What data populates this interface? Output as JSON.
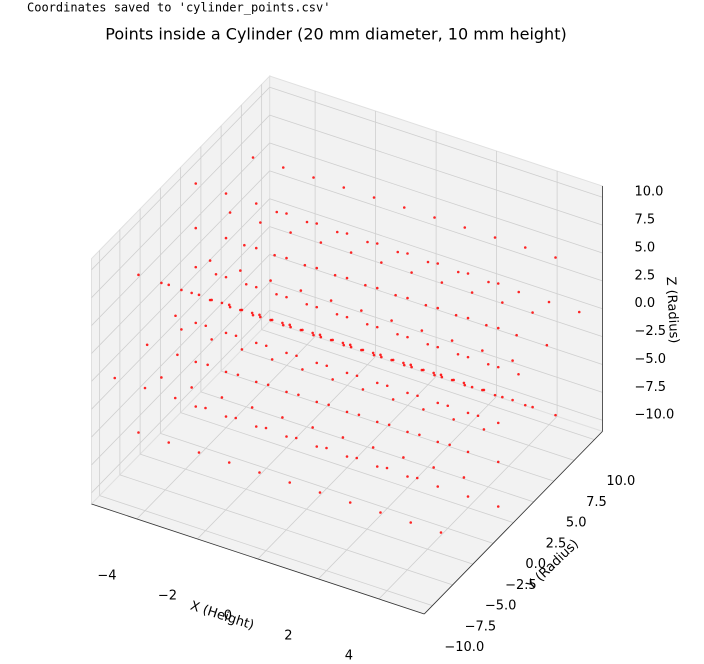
{
  "output_text": "Coordinates saved to 'cylinder_points.csv'",
  "chart_data": {
    "type": "scatter3d",
    "title": "Points inside a Cylinder (20 mm diameter, 10 mm height)",
    "xlabel": "X (Height)",
    "ylabel": "Y (Radius)",
    "zlabel": "Z (Radius)",
    "color": "#ff0000",
    "xlim": [
      -5.5,
      5.5
    ],
    "ylim": [
      -11,
      11
    ],
    "zlim": [
      -11,
      11
    ],
    "xticks": [
      {
        "value": -4,
        "label": "−4"
      },
      {
        "value": -2,
        "label": "−2"
      },
      0,
      2,
      4
    ],
    "yticks": [
      {
        "value": -10,
        "label": "−10.0"
      },
      {
        "value": -7.5,
        "label": "−7.5"
      },
      {
        "value": -5,
        "label": "−5.0"
      },
      {
        "value": -2.5,
        "label": "−2.5"
      },
      {
        "value": 0,
        "label": "0.0"
      },
      2.5,
      {
        "value": 5,
        "label": "5.0"
      },
      7.5,
      {
        "value": 10,
        "label": "10.0"
      }
    ],
    "zticks": [
      {
        "value": -10,
        "label": "−10.0"
      },
      {
        "value": -7.5,
        "label": "−7.5"
      },
      {
        "value": -5,
        "label": "−5.0"
      },
      {
        "value": -2.5,
        "label": "−2.5"
      },
      {
        "value": 0,
        "label": "0.0"
      },
      2.5,
      {
        "value": 5,
        "label": "5.0"
      },
      7.5,
      {
        "value": 10,
        "label": "10.0"
      }
    ],
    "grid": true,
    "x": [
      -5,
      -5,
      -5,
      -5,
      -5,
      -5,
      -5,
      -5,
      -5,
      -5,
      -5,
      -5,
      -5,
      -5,
      -5,
      -5,
      -5,
      -5,
      -5,
      -5,
      -5,
      -5,
      -5,
      -5,
      -4,
      -4,
      -4,
      -4,
      -4,
      -4,
      -4,
      -4,
      -4,
      -4,
      -4,
      -4,
      -4,
      -4,
      -4,
      -4,
      -4,
      -4,
      -4,
      -4,
      -4,
      -4,
      -4,
      -4,
      -3,
      -3,
      -3,
      -3,
      -3,
      -3,
      -3,
      -3,
      -3,
      -3,
      -3,
      -3,
      -3,
      -3,
      -3,
      -3,
      -3,
      -3,
      -3,
      -3,
      -3,
      -3,
      -3,
      -3,
      -2,
      -2,
      -2,
      -2,
      -2,
      -2,
      -2,
      -2,
      -2,
      -2,
      -2,
      -2,
      -2,
      -2,
      -2,
      -2,
      -2,
      -2,
      -2,
      -2,
      -2,
      -2,
      -2,
      -2,
      -1,
      -1,
      -1,
      -1,
      -1,
      -1,
      -1,
      -1,
      -1,
      -1,
      -1,
      -1,
      -1,
      -1,
      -1,
      -1,
      -1,
      -1,
      -1,
      -1,
      -1,
      -1,
      -1,
      -1,
      0,
      0,
      0,
      0,
      0,
      0,
      0,
      0,
      0,
      0,
      0,
      0,
      0,
      0,
      0,
      0,
      0,
      0,
      0,
      0,
      0,
      0,
      0,
      0,
      1,
      1,
      1,
      1,
      1,
      1,
      1,
      1,
      1,
      1,
      1,
      1,
      1,
      1,
      1,
      1,
      1,
      1,
      1,
      1,
      1,
      1,
      1,
      1,
      2,
      2,
      2,
      2,
      2,
      2,
      2,
      2,
      2,
      2,
      2,
      2,
      2,
      2,
      2,
      2,
      2,
      2,
      2,
      2,
      2,
      2,
      2,
      2,
      3,
      3,
      3,
      3,
      3,
      3,
      3,
      3,
      3,
      3,
      3,
      3,
      3,
      3,
      3,
      3,
      3,
      3,
      3,
      3,
      3,
      3,
      3,
      3,
      4,
      4,
      4,
      4,
      4,
      4,
      4,
      4,
      4,
      4,
      4,
      4,
      4,
      4,
      4,
      4,
      4,
      4,
      4,
      4,
      4,
      4,
      4,
      4,
      5,
      5,
      5,
      5,
      5,
      5,
      5,
      5,
      5,
      5,
      5,
      5,
      5,
      5,
      5,
      5,
      5,
      5,
      5,
      5,
      5,
      5,
      5,
      5
    ],
    "y": [
      2.5,
      1.77,
      0,
      -1.77,
      -2.5,
      -1.77,
      0,
      1.77,
      6,
      4.24,
      0,
      -4.24,
      -6,
      -4.24,
      0,
      4.24,
      10,
      7.07,
      0,
      -7.07,
      -10,
      -7.07,
      0,
      7.07,
      2.5,
      1.77,
      0,
      -1.77,
      -2.5,
      -1.77,
      0,
      1.77,
      6,
      4.24,
      0,
      -4.24,
      -6,
      -4.24,
      0,
      4.24,
      10,
      7.07,
      0,
      -7.07,
      -10,
      -7.07,
      0,
      7.07,
      2.5,
      1.77,
      0,
      -1.77,
      -2.5,
      -1.77,
      0,
      1.77,
      6,
      4.24,
      0,
      -4.24,
      -6,
      -4.24,
      0,
      4.24,
      10,
      7.07,
      0,
      -7.07,
      -10,
      -7.07,
      0,
      7.07,
      2.5,
      1.77,
      0,
      -1.77,
      -2.5,
      -1.77,
      0,
      1.77,
      6,
      4.24,
      0,
      -4.24,
      -6,
      -4.24,
      0,
      4.24,
      10,
      7.07,
      0,
      -7.07,
      -10,
      -7.07,
      0,
      7.07,
      2.5,
      1.77,
      0,
      -1.77,
      -2.5,
      -1.77,
      0,
      1.77,
      6,
      4.24,
      0,
      -4.24,
      -6,
      -4.24,
      0,
      4.24,
      10,
      7.07,
      0,
      -7.07,
      -10,
      -7.07,
      0,
      7.07,
      2.5,
      1.77,
      0,
      -1.77,
      -2.5,
      -1.77,
      0,
      1.77,
      6,
      4.24,
      0,
      -4.24,
      -6,
      -4.24,
      0,
      4.24,
      10,
      7.07,
      0,
      -7.07,
      -10,
      -7.07,
      0,
      7.07,
      2.5,
      1.77,
      0,
      -1.77,
      -2.5,
      -1.77,
      0,
      1.77,
      6,
      4.24,
      0,
      -4.24,
      -6,
      -4.24,
      0,
      4.24,
      10,
      7.07,
      0,
      -7.07,
      -10,
      -7.07,
      0,
      7.07,
      2.5,
      1.77,
      0,
      -1.77,
      -2.5,
      -1.77,
      0,
      1.77,
      6,
      4.24,
      0,
      -4.24,
      -6,
      -4.24,
      0,
      4.24,
      10,
      7.07,
      0,
      -7.07,
      -10,
      -7.07,
      0,
      7.07,
      2.5,
      1.77,
      0,
      -1.77,
      -2.5,
      -1.77,
      0,
      1.77,
      6,
      4.24,
      0,
      -4.24,
      -6,
      -4.24,
      0,
      4.24,
      10,
      7.07,
      0,
      -7.07,
      -10,
      -7.07,
      0,
      7.07,
      2.5,
      1.77,
      0,
      -1.77,
      -2.5,
      -1.77,
      0,
      1.77,
      6,
      4.24,
      0,
      -4.24,
      -6,
      -4.24,
      0,
      4.24,
      10,
      7.07,
      0,
      -7.07,
      -10,
      -7.07,
      0,
      7.07,
      2.5,
      1.77,
      0,
      -1.77,
      -2.5,
      -1.77,
      0,
      1.77,
      6,
      4.24,
      0,
      -4.24,
      -6,
      -4.24,
      0,
      4.24,
      10,
      7.07,
      0,
      -7.07,
      -10,
      -7.07,
      0,
      7.07
    ],
    "z": [
      0,
      1.77,
      2.5,
      1.77,
      0,
      -1.77,
      -2.5,
      -1.77,
      0,
      4.24,
      6,
      4.24,
      0,
      -4.24,
      -6,
      -4.24,
      0,
      7.07,
      10,
      7.07,
      0,
      -7.07,
      -10,
      -7.07,
      0,
      1.77,
      2.5,
      1.77,
      0,
      -1.77,
      -2.5,
      -1.77,
      0,
      4.24,
      6,
      4.24,
      0,
      -4.24,
      -6,
      -4.24,
      0,
      7.07,
      10,
      7.07,
      0,
      -7.07,
      -10,
      -7.07,
      0,
      1.77,
      2.5,
      1.77,
      0,
      -1.77,
      -2.5,
      -1.77,
      0,
      4.24,
      6,
      4.24,
      0,
      -4.24,
      -6,
      -4.24,
      0,
      7.07,
      10,
      7.07,
      0,
      -7.07,
      -10,
      -7.07,
      0,
      1.77,
      2.5,
      1.77,
      0,
      -1.77,
      -2.5,
      -1.77,
      0,
      4.24,
      6,
      4.24,
      0,
      -4.24,
      -6,
      -4.24,
      0,
      7.07,
      10,
      7.07,
      0,
      -7.07,
      -10,
      -7.07,
      0,
      1.77,
      2.5,
      1.77,
      0,
      -1.77,
      -2.5,
      -1.77,
      0,
      4.24,
      6,
      4.24,
      0,
      -4.24,
      -6,
      -4.24,
      0,
      7.07,
      10,
      7.07,
      0,
      -7.07,
      -10,
      -7.07,
      0,
      1.77,
      2.5,
      1.77,
      0,
      -1.77,
      -2.5,
      -1.77,
      0,
      4.24,
      6,
      4.24,
      0,
      -4.24,
      -6,
      -4.24,
      0,
      7.07,
      10,
      7.07,
      0,
      -7.07,
      -10,
      -7.07,
      0,
      1.77,
      2.5,
      1.77,
      0,
      -1.77,
      -2.5,
      -1.77,
      0,
      4.24,
      6,
      4.24,
      0,
      -4.24,
      -6,
      -4.24,
      0,
      7.07,
      10,
      7.07,
      0,
      -7.07,
      -10,
      -7.07,
      0,
      1.77,
      2.5,
      1.77,
      0,
      -1.77,
      -2.5,
      -1.77,
      0,
      4.24,
      6,
      4.24,
      0,
      -4.24,
      -6,
      -4.24,
      0,
      7.07,
      10,
      7.07,
      0,
      -7.07,
      -10,
      -7.07,
      0,
      1.77,
      2.5,
      1.77,
      0,
      -1.77,
      -2.5,
      -1.77,
      0,
      4.24,
      6,
      4.24,
      0,
      -4.24,
      -6,
      -4.24,
      0,
      7.07,
      10,
      7.07,
      0,
      -7.07,
      -10,
      -7.07,
      0,
      1.77,
      2.5,
      1.77,
      0,
      -1.77,
      -2.5,
      -1.77,
      0,
      4.24,
      6,
      4.24,
      0,
      -4.24,
      -6,
      -4.24,
      0,
      7.07,
      10,
      7.07,
      0,
      -7.07,
      -10,
      -7.07,
      0,
      1.77,
      2.5,
      1.77,
      0,
      -1.77,
      -2.5,
      -1.77,
      0,
      4.24,
      6,
      4.24,
      0,
      -4.24,
      -6,
      -4.24,
      0,
      7.07,
      10,
      7.07,
      0,
      -7.07,
      -10,
      -7.07
    ]
  }
}
